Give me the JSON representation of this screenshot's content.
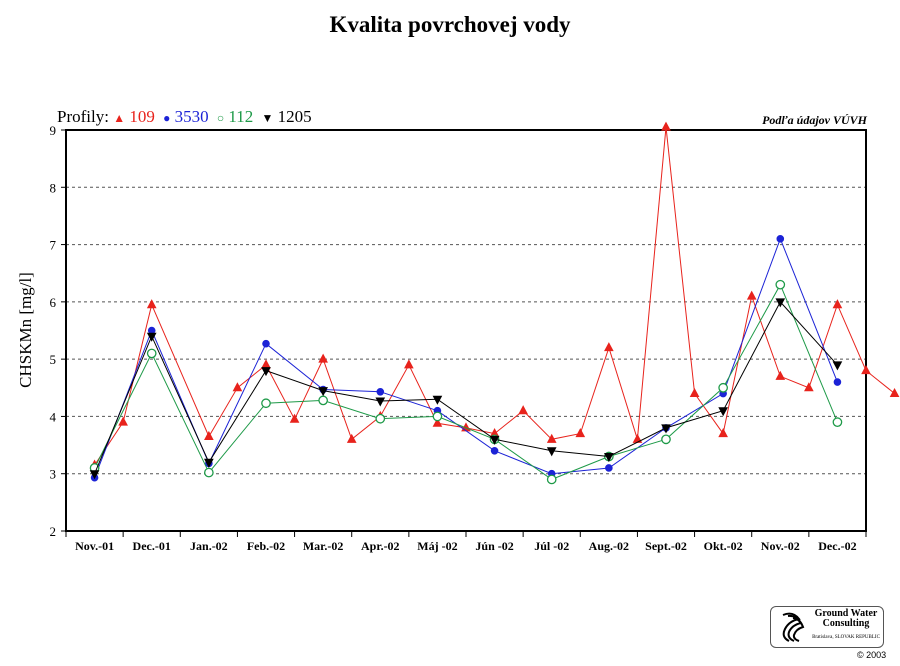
{
  "chart_data": {
    "type": "line",
    "title": "Kvalita povrchovej vody",
    "legend_prefix": "Profily:",
    "source_note": "Podľa údajov VÚVH",
    "ylabel": "CHSKMn [mg/l]",
    "xlabel": "",
    "ylim": [
      2,
      9
    ],
    "yticks": [
      2,
      3,
      4,
      5,
      6,
      7,
      8,
      9
    ],
    "grid": true,
    "legend_position": "top-left",
    "categories": [
      "Nov.-01",
      "Dec.-01",
      "Jan.-02",
      "Feb.-02",
      "Mar.-02",
      "Apr.-02",
      "Máj -02",
      "Jún -02",
      "Júl -02",
      "Aug.-02",
      "Sept.-02",
      "Okt.-02",
      "Nov.-02",
      "Dec.-02"
    ],
    "series": [
      {
        "name": "109",
        "color": "#e8231c",
        "marker": "triangle-up",
        "filled": true,
        "points": [
          {
            "x": 0.0,
            "y": 3.15
          },
          {
            "x": 0.5,
            "y": 3.9
          },
          {
            "x": 1.0,
            "y": 5.95
          },
          {
            "x": 2.0,
            "y": 3.65
          },
          {
            "x": 2.5,
            "y": 4.5
          },
          {
            "x": 3.0,
            "y": 4.9
          },
          {
            "x": 3.5,
            "y": 3.95
          },
          {
            "x": 4.0,
            "y": 5.0
          },
          {
            "x": 4.5,
            "y": 3.6
          },
          {
            "x": 5.0,
            "y": 4.0
          },
          {
            "x": 5.5,
            "y": 4.9
          },
          {
            "x": 6.0,
            "y": 3.88
          },
          {
            "x": 6.5,
            "y": 3.8
          },
          {
            "x": 7.0,
            "y": 3.7
          },
          {
            "x": 7.5,
            "y": 4.1
          },
          {
            "x": 8.0,
            "y": 3.6
          },
          {
            "x": 8.5,
            "y": 3.7
          },
          {
            "x": 9.0,
            "y": 5.2
          },
          {
            "x": 9.5,
            "y": 3.6
          },
          {
            "x": 10.0,
            "y": 9.05
          },
          {
            "x": 10.5,
            "y": 4.4
          },
          {
            "x": 11.0,
            "y": 3.7
          },
          {
            "x": 11.5,
            "y": 6.1
          },
          {
            "x": 12.0,
            "y": 4.7
          },
          {
            "x": 12.5,
            "y": 4.5
          },
          {
            "x": 13.0,
            "y": 5.95
          },
          {
            "x": 13.5,
            "y": 4.8
          },
          {
            "x": 14.0,
            "y": 4.4
          }
        ]
      },
      {
        "name": "3530",
        "color": "#1c23d6",
        "marker": "circle",
        "filled": true,
        "points": [
          {
            "x": 0.0,
            "y": 2.93
          },
          {
            "x": 1.0,
            "y": 5.5
          },
          {
            "x": 2.0,
            "y": 3.18
          },
          {
            "x": 3.0,
            "y": 5.27
          },
          {
            "x": 4.0,
            "y": 4.47
          },
          {
            "x": 5.0,
            "y": 4.43
          },
          {
            "x": 6.0,
            "y": 4.1
          },
          {
            "x": 7.0,
            "y": 3.4
          },
          {
            "x": 8.0,
            "y": 3.0
          },
          {
            "x": 9.0,
            "y": 3.1
          },
          {
            "x": 10.0,
            "y": 3.8
          },
          {
            "x": 11.0,
            "y": 4.4
          },
          {
            "x": 12.0,
            "y": 7.1
          },
          {
            "x": 13.0,
            "y": 4.6
          }
        ]
      },
      {
        "name": "112",
        "color": "#1e9a48",
        "marker": "circle",
        "filled": false,
        "points": [
          {
            "x": 0.0,
            "y": 3.1
          },
          {
            "x": 1.0,
            "y": 5.1
          },
          {
            "x": 2.0,
            "y": 3.02
          },
          {
            "x": 3.0,
            "y": 4.23
          },
          {
            "x": 4.0,
            "y": 4.28
          },
          {
            "x": 5.0,
            "y": 3.96
          },
          {
            "x": 6.0,
            "y": 4.0
          },
          {
            "x": 7.0,
            "y": 3.6
          },
          {
            "x": 8.0,
            "y": 2.9
          },
          {
            "x": 9.0,
            "y": 3.3
          },
          {
            "x": 10.0,
            "y": 3.6
          },
          {
            "x": 11.0,
            "y": 4.5
          },
          {
            "x": 12.0,
            "y": 6.3
          },
          {
            "x": 13.0,
            "y": 3.9
          }
        ]
      },
      {
        "name": "1205",
        "color": "#000000",
        "marker": "triangle-down",
        "filled": true,
        "points": [
          {
            "x": 0.0,
            "y": 3.0
          },
          {
            "x": 1.0,
            "y": 5.4
          },
          {
            "x": 2.0,
            "y": 3.2
          },
          {
            "x": 3.0,
            "y": 4.8
          },
          {
            "x": 4.0,
            "y": 4.45
          },
          {
            "x": 5.0,
            "y": 4.27
          },
          {
            "x": 6.0,
            "y": 4.3
          },
          {
            "x": 7.0,
            "y": 3.6
          },
          {
            "x": 8.0,
            "y": 3.4
          },
          {
            "x": 9.0,
            "y": 3.3
          },
          {
            "x": 10.0,
            "y": 3.8
          },
          {
            "x": 11.0,
            "y": 4.1
          },
          {
            "x": 12.0,
            "y": 6.0
          },
          {
            "x": 13.0,
            "y": 4.9
          }
        ]
      }
    ]
  },
  "footer": {
    "logo_text_1": "Ground Water",
    "logo_text_2": "Consulting",
    "logo_text_3": "Bratislava, SLOVAK REPUBLIC",
    "copyright": "© 2003"
  }
}
